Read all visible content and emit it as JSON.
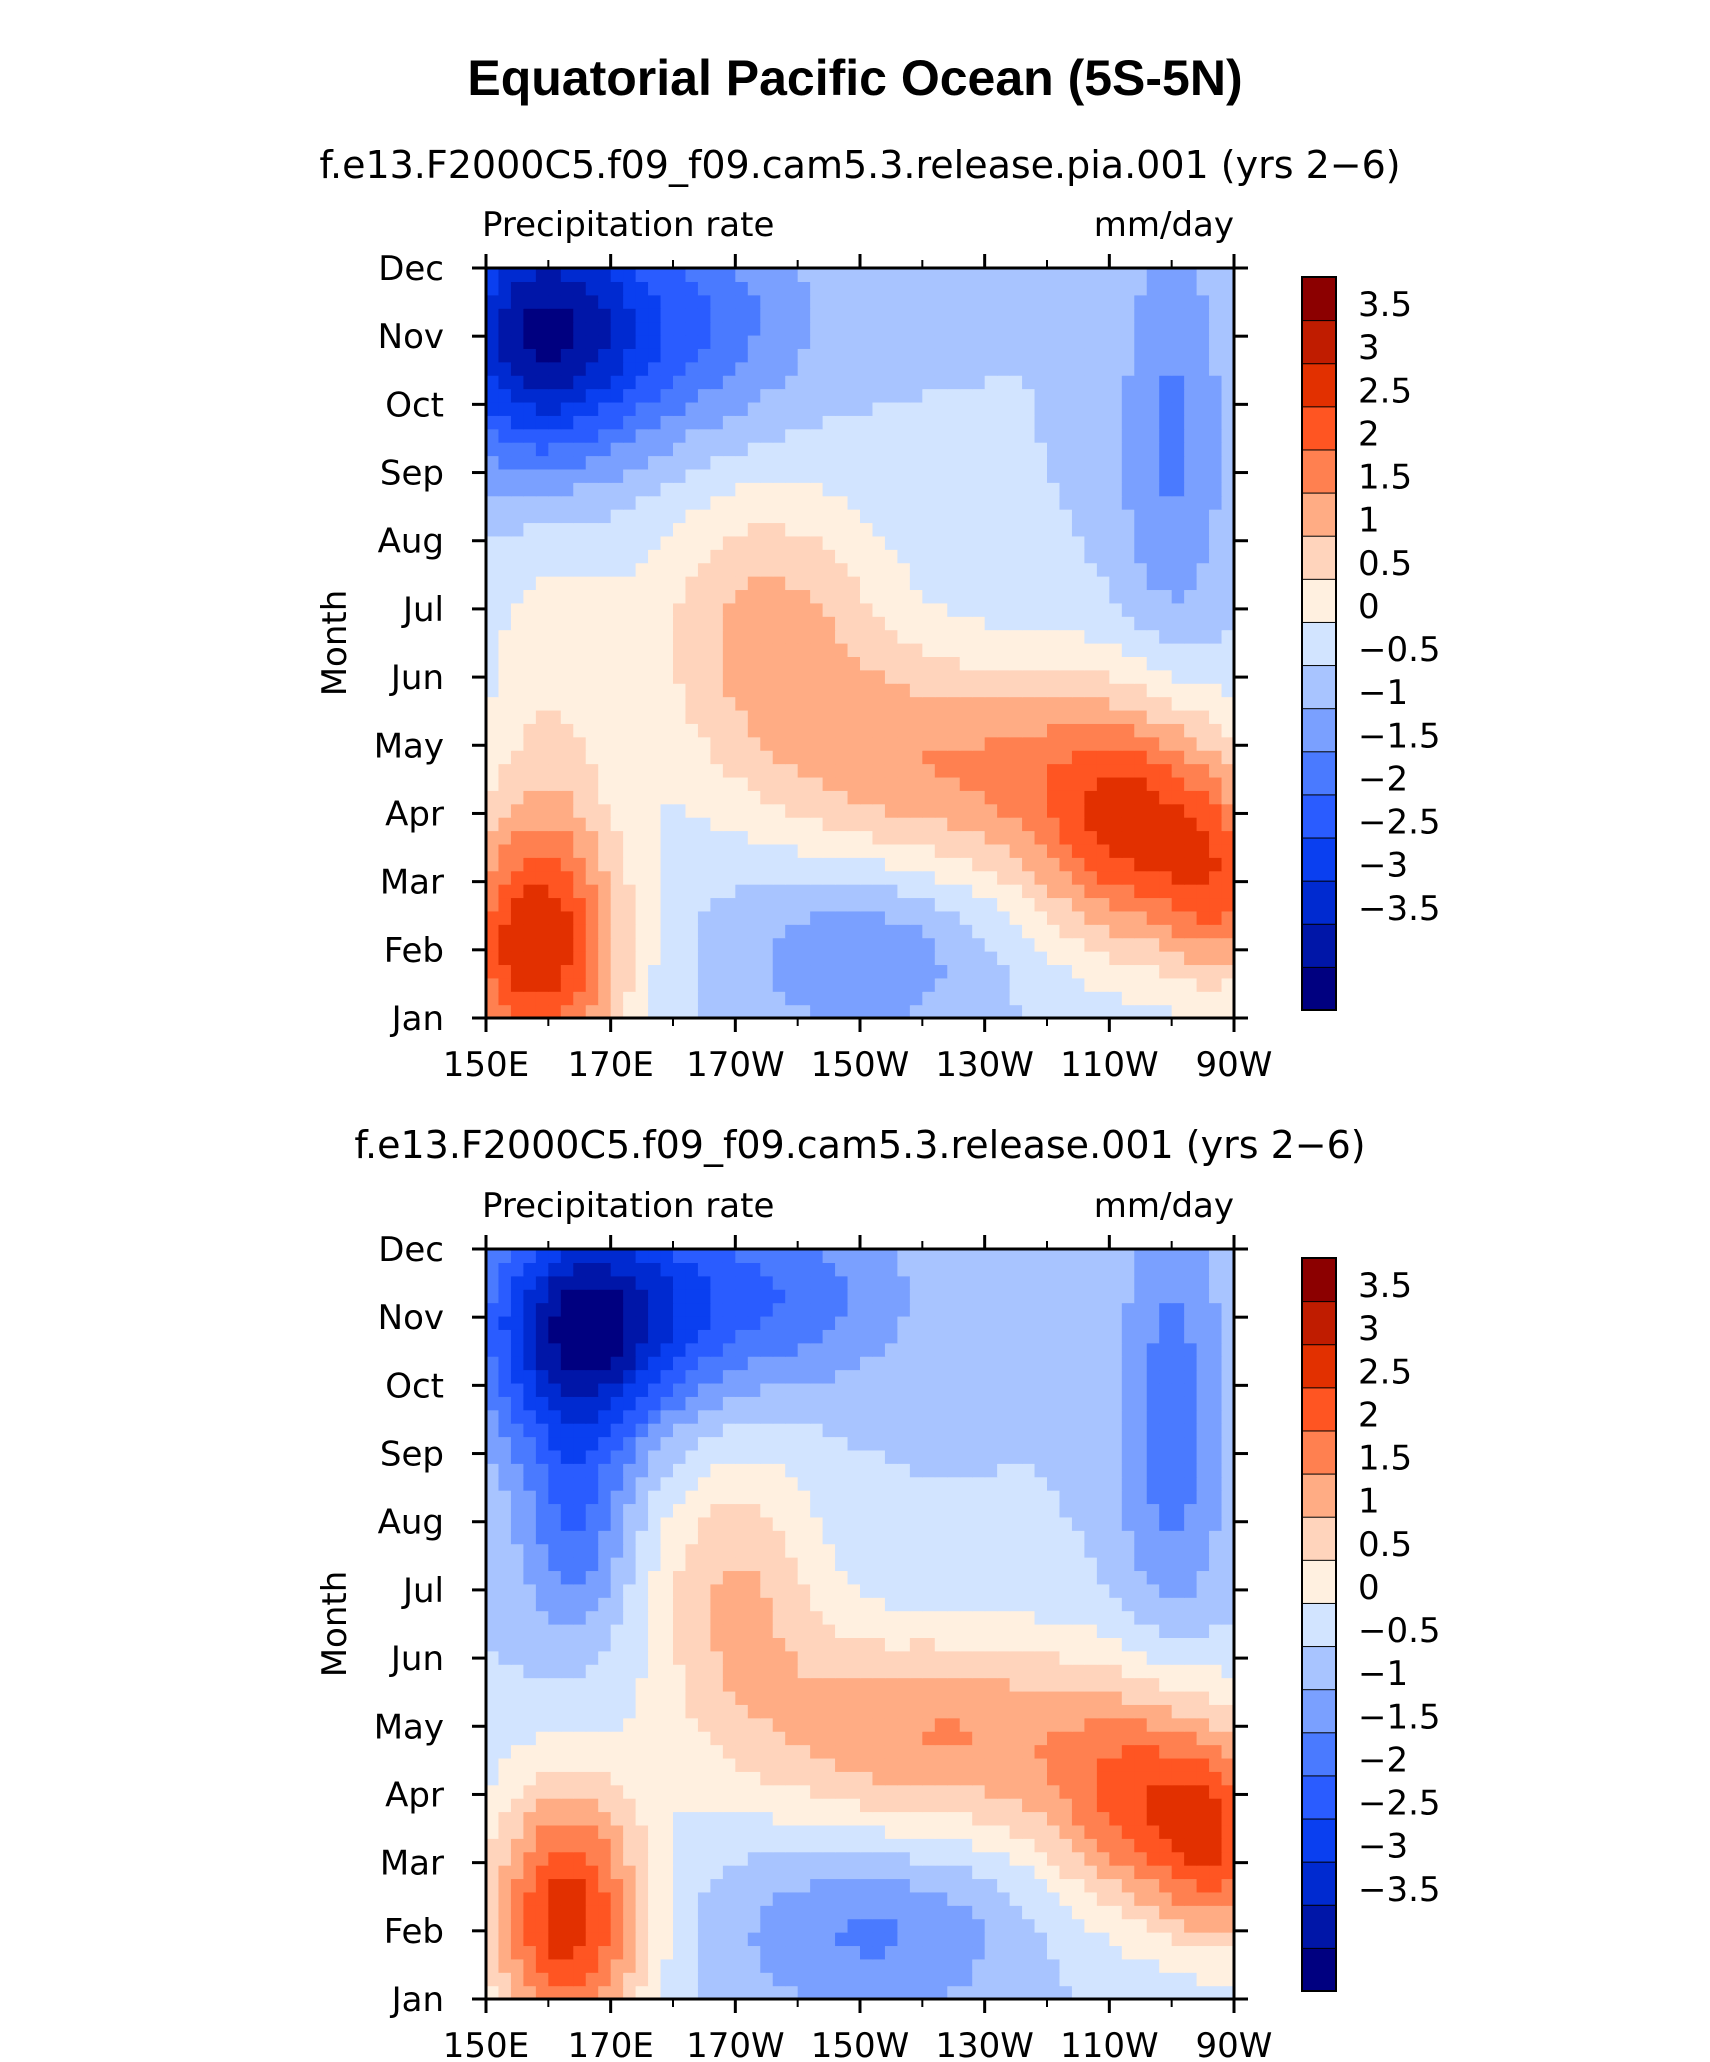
{
  "chart_data": {
    "type": "heatmap",
    "title": "Equatorial Pacific Ocean (5S-5N)",
    "colors": [
      "#000080",
      "#0016a8",
      "#002ad0",
      "#0a3ff0",
      "#2a5cff",
      "#4a7aff",
      "#7aa0ff",
      "#a8c4ff",
      "#d2e4ff",
      "#fff0e0",
      "#ffd4bc",
      "#ffac84",
      "#ff8050",
      "#ff5522",
      "#e23000",
      "#c01c00",
      "#8c0000"
    ],
    "colorbar_labels": [
      "3.5",
      "3",
      "2.5",
      "2",
      "1.5",
      "1",
      "0.5",
      "0",
      "−0.5",
      "−1",
      "−1.5",
      "−2",
      "−2.5",
      "−3",
      "−3.5"
    ],
    "panels": [
      {
        "subtitle": "f.e13.F2000C5.f09_f09.cam5.3.release.pia.001 (yrs 2−6)",
        "left_label": "Precipitation rate",
        "right_label": "mm/day",
        "ylabel": "Month",
        "x_ticks": [
          "150E",
          "170E",
          "170W",
          "150W",
          "130W",
          "110W",
          "90W"
        ],
        "y_ticks": [
          "Jan",
          "Feb",
          "Mar",
          "Apr",
          "May",
          "Jun",
          "Jul",
          "Aug",
          "Sep",
          "Oct",
          "Nov",
          "Dec"
        ],
        "x_range": [
          "150E",
          "90W"
        ],
        "y_range": [
          "Jan",
          "Dec"
        ],
        "z_range": [
          -4,
          4
        ],
        "features": [
          {
            "lon": 158,
            "month": 10.0,
            "amp": -3.2,
            "slon": 11,
            "smon": 1.4
          },
          {
            "lon": 180,
            "month": 10.2,
            "amp": -1.5,
            "slon": 15,
            "smon": 1.2
          },
          {
            "lon": 260,
            "month": 8.5,
            "amp": -1.1,
            "slon": 6,
            "smon": 2.2
          },
          {
            "lon": 158,
            "month": 1.0,
            "amp": 3.2,
            "slon": 10,
            "smon": 1.4
          },
          {
            "lon": 160,
            "month": 4.5,
            "amp": 0.8,
            "slon": 8,
            "smon": 2.5
          },
          {
            "lon": 195,
            "month": 5.8,
            "amp": 1.6,
            "slon": 14,
            "smon": 1.5
          },
          {
            "lon": 225,
            "month": 3.7,
            "amp": 1.9,
            "slon": 22,
            "smon": 1.2
          },
          {
            "lon": 255,
            "month": 2.7,
            "amp": 2.7,
            "slon": 12,
            "smon": 1.3
          },
          {
            "lon": 268,
            "month": 1.8,
            "amp": 1.5,
            "slon": 6,
            "smon": 1.0
          },
          {
            "lon": 210,
            "month": 1.0,
            "amp": -1.0,
            "slon": 14,
            "smon": 0.9
          }
        ]
      },
      {
        "subtitle": "f.e13.F2000C5.f09_f09.cam5.3.release.001 (yrs 2−6)",
        "left_label": "Precipitation rate",
        "right_label": "mm/day",
        "ylabel": "Month",
        "x_ticks": [
          "150E",
          "170E",
          "170W",
          "150W",
          "130W",
          "110W",
          "90W"
        ],
        "y_ticks": [
          "Jan",
          "Feb",
          "Mar",
          "Apr",
          "May",
          "Jun",
          "Jul",
          "Aug",
          "Sep",
          "Oct",
          "Nov",
          "Dec"
        ],
        "x_range": [
          "150E",
          "90W"
        ],
        "y_range": [
          "Jan",
          "Dec"
        ],
        "z_range": [
          -4,
          4
        ],
        "features": [
          {
            "lon": 165,
            "month": 9.8,
            "amp": -3.3,
            "slon": 11,
            "smon": 1.2
          },
          {
            "lon": 190,
            "month": 10.3,
            "amp": -1.6,
            "slon": 18,
            "smon": 1.0
          },
          {
            "lon": 260,
            "month": 8.5,
            "amp": -1.3,
            "slon": 6,
            "smon": 2.3
          },
          {
            "lon": 164,
            "month": 7.0,
            "amp": -1.4,
            "slon": 6,
            "smon": 1.2
          },
          {
            "lon": 163,
            "month": 1.2,
            "amp": 3.3,
            "slon": 9,
            "smon": 1.4
          },
          {
            "lon": 190,
            "month": 6.0,
            "amp": 1.5,
            "slon": 10,
            "smon": 1.5
          },
          {
            "lon": 222,
            "month": 3.9,
            "amp": 2.0,
            "slon": 22,
            "smon": 1.1
          },
          {
            "lon": 258,
            "month": 2.8,
            "amp": 2.6,
            "slon": 12,
            "smon": 1.2
          },
          {
            "lon": 268,
            "month": 2.0,
            "amp": 1.4,
            "slon": 6,
            "smon": 1.0
          },
          {
            "lon": 212,
            "month": 1.0,
            "amp": -1.1,
            "slon": 16,
            "smon": 0.9
          }
        ]
      }
    ]
  }
}
